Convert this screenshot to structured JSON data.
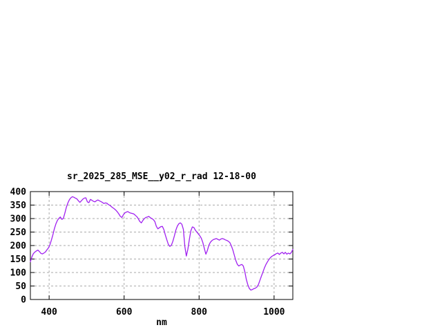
{
  "window": {
    "background": "#ffffff"
  },
  "chart_data": {
    "type": "line",
    "title": "sr_2025_285_MSE__y02_r_rad 12-18-00",
    "xlabel": "nm",
    "ylabel": "",
    "xlim": [
      350,
      1050
    ],
    "ylim": [
      0,
      400
    ],
    "x_ticks": [
      400,
      600,
      800,
      1000
    ],
    "y_ticks": [
      0,
      50,
      100,
      150,
      200,
      250,
      300,
      350,
      400
    ],
    "grid": true,
    "legend_position": "none",
    "line_color": "#a020f0",
    "grid_color": "#aaaaaa",
    "border_color": "#000000",
    "series": [
      {
        "name": "sr_2025_285_MSE__y02_r_rad",
        "points": [
          [
            350,
            140
          ],
          [
            354,
            158
          ],
          [
            358,
            170
          ],
          [
            362,
            176
          ],
          [
            366,
            180
          ],
          [
            370,
            183
          ],
          [
            374,
            178
          ],
          [
            378,
            171
          ],
          [
            382,
            169
          ],
          [
            386,
            172
          ],
          [
            390,
            176
          ],
          [
            394,
            184
          ],
          [
            398,
            191
          ],
          [
            402,
            202
          ],
          [
            406,
            220
          ],
          [
            410,
            240
          ],
          [
            414,
            262
          ],
          [
            418,
            280
          ],
          [
            422,
            293
          ],
          [
            426,
            301
          ],
          [
            430,
            306
          ],
          [
            434,
            297
          ],
          [
            438,
            301
          ],
          [
            442,
            320
          ],
          [
            446,
            342
          ],
          [
            450,
            358
          ],
          [
            454,
            370
          ],
          [
            458,
            377
          ],
          [
            462,
            381
          ],
          [
            466,
            379
          ],
          [
            470,
            376
          ],
          [
            474,
            373
          ],
          [
            478,
            366
          ],
          [
            482,
            360
          ],
          [
            486,
            366
          ],
          [
            490,
            372
          ],
          [
            494,
            376
          ],
          [
            498,
            377
          ],
          [
            502,
            362
          ],
          [
            506,
            359
          ],
          [
            510,
            371
          ],
          [
            514,
            368
          ],
          [
            518,
            364
          ],
          [
            522,
            362
          ],
          [
            526,
            366
          ],
          [
            530,
            369
          ],
          [
            534,
            366
          ],
          [
            538,
            363
          ],
          [
            542,
            360
          ],
          [
            546,
            356
          ],
          [
            550,
            358
          ],
          [
            554,
            357
          ],
          [
            558,
            352
          ],
          [
            562,
            349
          ],
          [
            566,
            344
          ],
          [
            570,
            340
          ],
          [
            574,
            336
          ],
          [
            578,
            331
          ],
          [
            582,
            325
          ],
          [
            586,
            317
          ],
          [
            590,
            308
          ],
          [
            594,
            304
          ],
          [
            598,
            314
          ],
          [
            602,
            321
          ],
          [
            606,
            324
          ],
          [
            610,
            326
          ],
          [
            614,
            322
          ],
          [
            618,
            320
          ],
          [
            622,
            319
          ],
          [
            626,
            317
          ],
          [
            630,
            312
          ],
          [
            634,
            307
          ],
          [
            638,
            299
          ],
          [
            642,
            289
          ],
          [
            646,
            284
          ],
          [
            650,
            293
          ],
          [
            654,
            300
          ],
          [
            658,
            304
          ],
          [
            662,
            306
          ],
          [
            666,
            308
          ],
          [
            670,
            303
          ],
          [
            674,
            300
          ],
          [
            678,
            296
          ],
          [
            682,
            289
          ],
          [
            686,
            271
          ],
          [
            690,
            262
          ],
          [
            694,
            266
          ],
          [
            698,
            270
          ],
          [
            702,
            271
          ],
          [
            706,
            259
          ],
          [
            710,
            239
          ],
          [
            714,
            221
          ],
          [
            718,
            204
          ],
          [
            722,
            197
          ],
          [
            726,
            201
          ],
          [
            730,
            216
          ],
          [
            734,
            236
          ],
          [
            738,
            257
          ],
          [
            742,
            272
          ],
          [
            746,
            281
          ],
          [
            750,
            284
          ],
          [
            754,
            279
          ],
          [
            758,
            260
          ],
          [
            762,
            196
          ],
          [
            766,
            161
          ],
          [
            770,
            186
          ],
          [
            774,
            223
          ],
          [
            778,
            254
          ],
          [
            782,
            269
          ],
          [
            786,
            267
          ],
          [
            790,
            257
          ],
          [
            794,
            250
          ],
          [
            798,
            243
          ],
          [
            802,
            236
          ],
          [
            806,
            227
          ],
          [
            810,
            211
          ],
          [
            814,
            189
          ],
          [
            818,
            168
          ],
          [
            822,
            181
          ],
          [
            826,
            201
          ],
          [
            830,
            212
          ],
          [
            834,
            218
          ],
          [
            838,
            222
          ],
          [
            842,
            224
          ],
          [
            846,
            226
          ],
          [
            850,
            223
          ],
          [
            854,
            220
          ],
          [
            858,
            224
          ],
          [
            862,
            226
          ],
          [
            866,
            224
          ],
          [
            870,
            221
          ],
          [
            874,
            219
          ],
          [
            878,
            216
          ],
          [
            882,
            211
          ],
          [
            886,
            199
          ],
          [
            890,
            184
          ],
          [
            894,
            164
          ],
          [
            898,
            144
          ],
          [
            902,
            130
          ],
          [
            906,
            124
          ],
          [
            910,
            128
          ],
          [
            914,
            130
          ],
          [
            918,
            124
          ],
          [
            922,
            103
          ],
          [
            926,
            74
          ],
          [
            930,
            54
          ],
          [
            934,
            41
          ],
          [
            938,
            35
          ],
          [
            942,
            37
          ],
          [
            946,
            40
          ],
          [
            950,
            42
          ],
          [
            954,
            46
          ],
          [
            958,
            55
          ],
          [
            962,
            70
          ],
          [
            966,
            86
          ],
          [
            970,
            101
          ],
          [
            974,
            116
          ],
          [
            978,
            129
          ],
          [
            982,
            139
          ],
          [
            986,
            148
          ],
          [
            990,
            155
          ],
          [
            994,
            160
          ],
          [
            998,
            163
          ],
          [
            1002,
            166
          ],
          [
            1006,
            170
          ],
          [
            1010,
            172
          ],
          [
            1014,
            167
          ],
          [
            1018,
            172
          ],
          [
            1022,
            175
          ],
          [
            1026,
            169
          ],
          [
            1030,
            175
          ],
          [
            1034,
            168
          ],
          [
            1038,
            172
          ],
          [
            1042,
            169
          ],
          [
            1046,
            174
          ],
          [
            1050,
            186
          ]
        ]
      }
    ]
  }
}
